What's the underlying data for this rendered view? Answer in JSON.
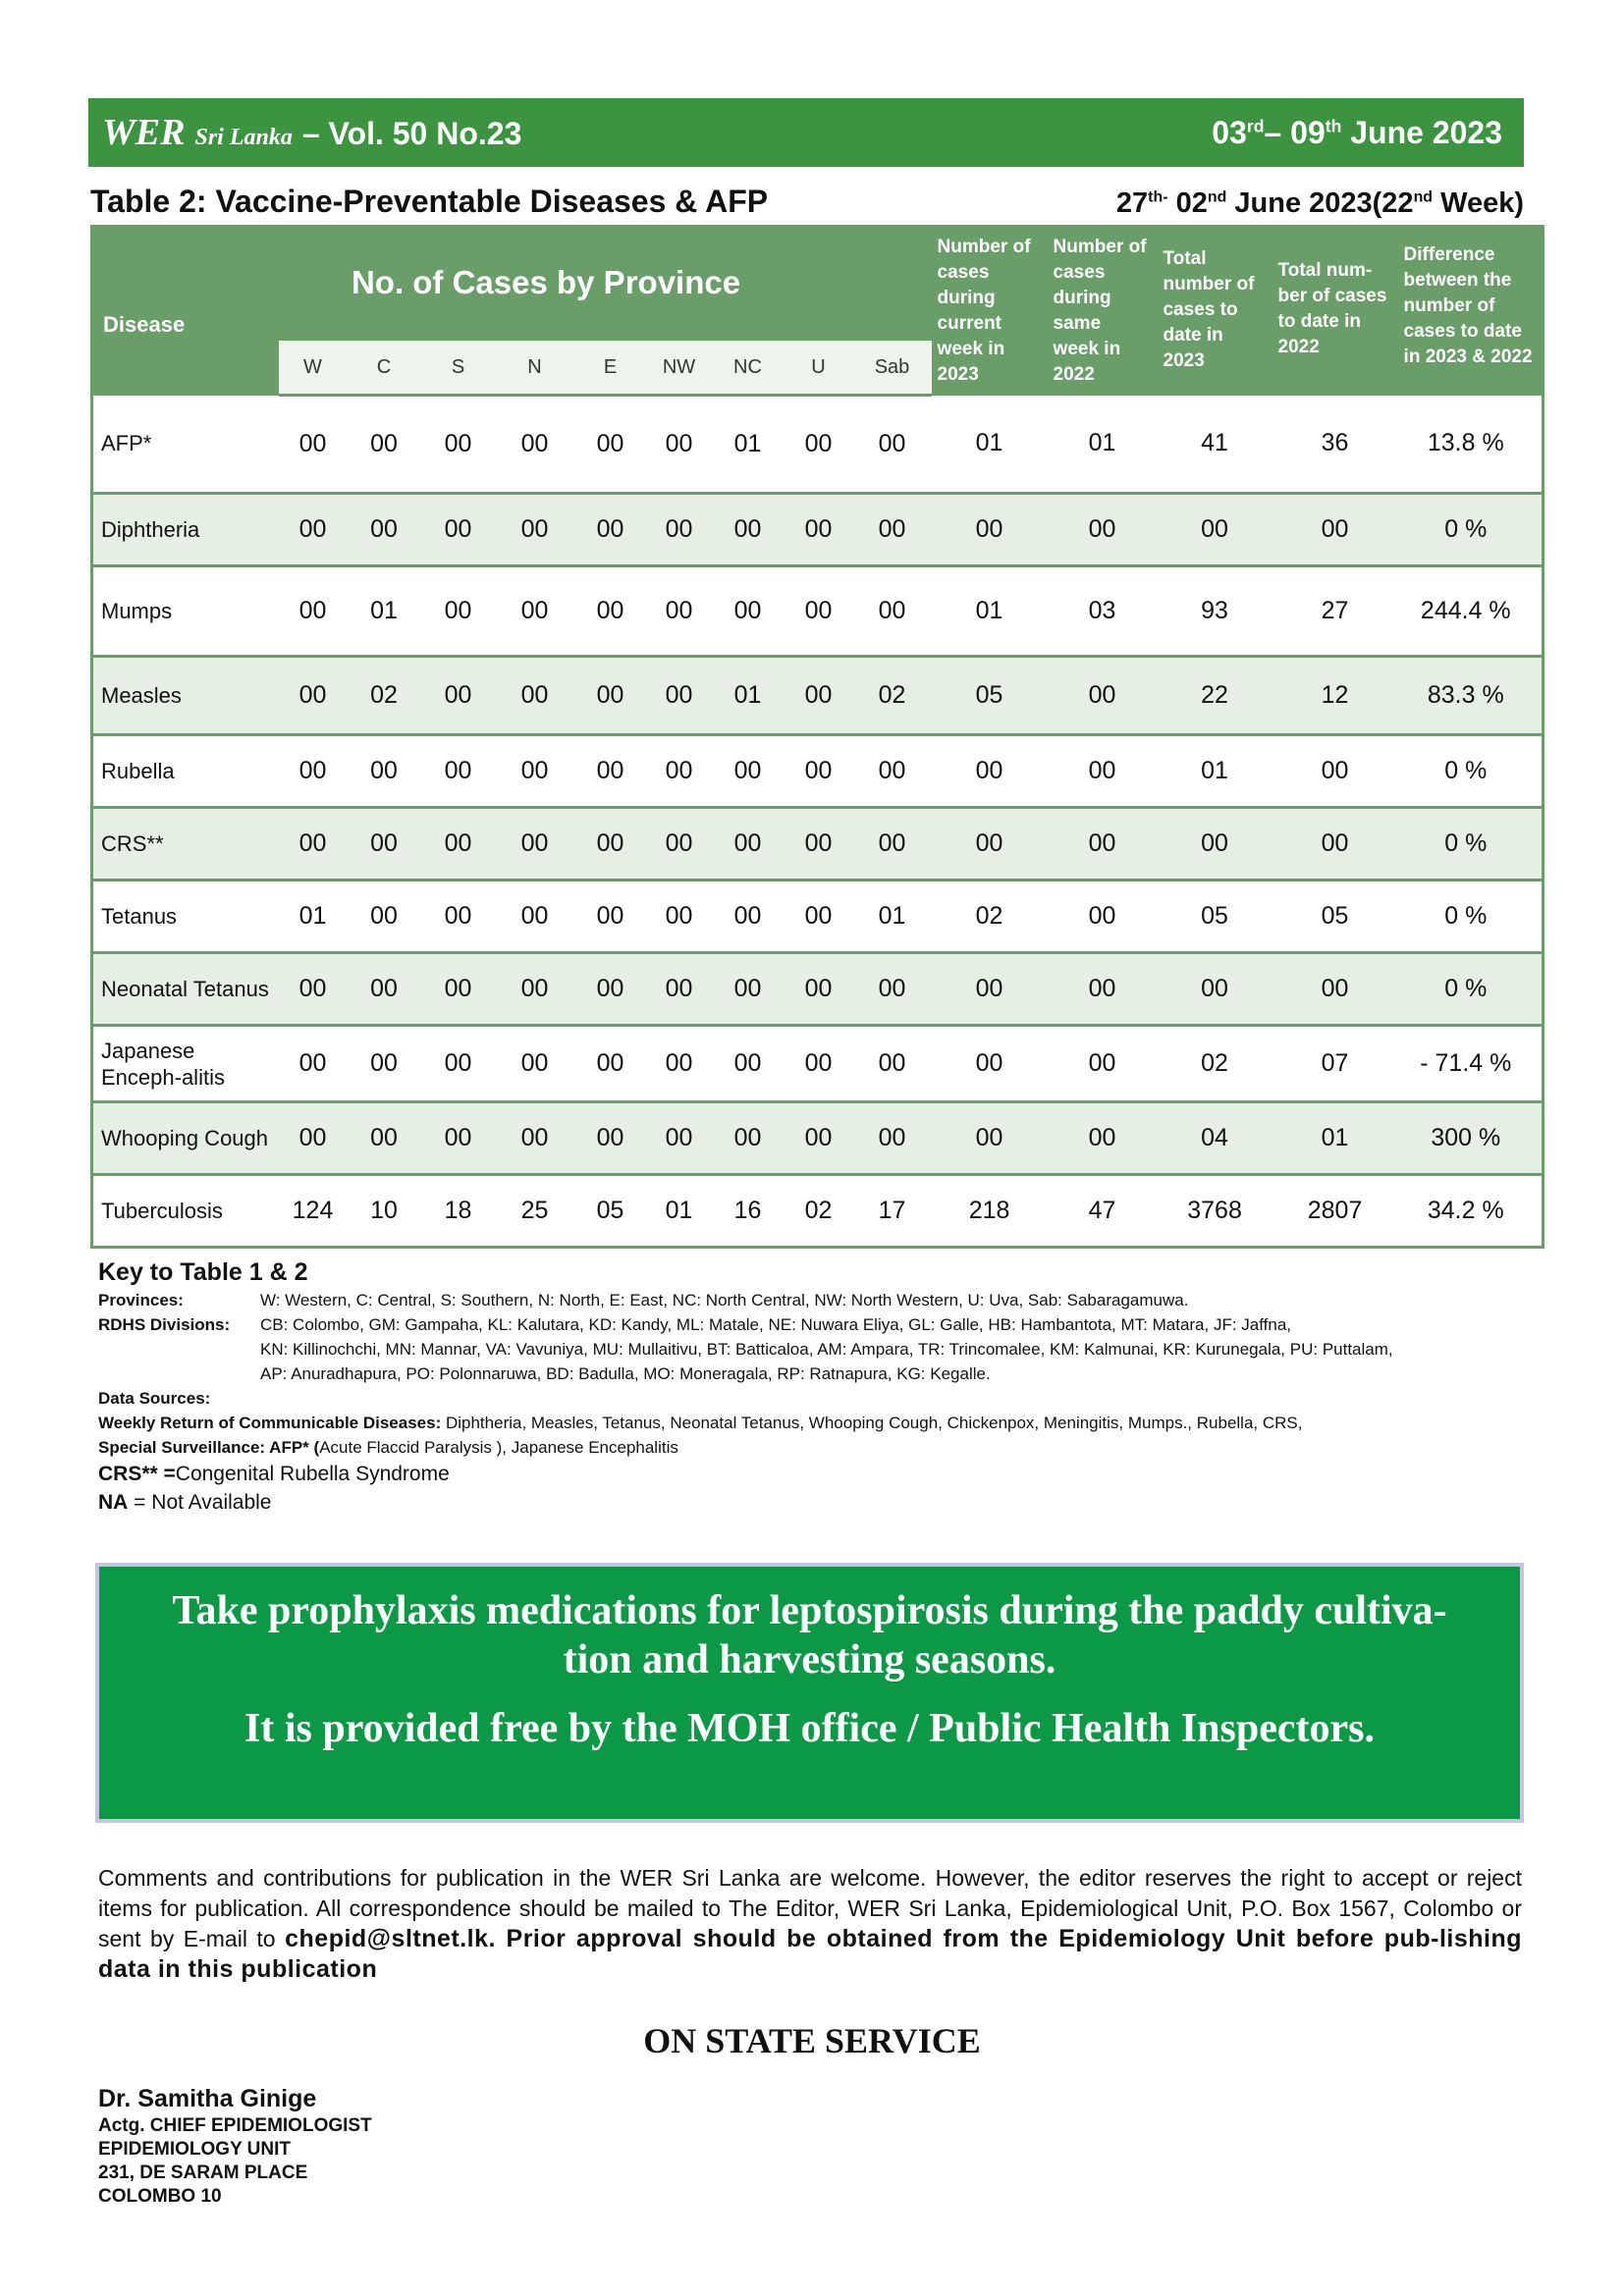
{
  "header": {
    "wer": "WER",
    "sri_lanka": "Sri Lanka",
    "volume": "– Vol. 50 No.23",
    "date_a": "03",
    "date_a_sup": "rd",
    "date_b": "– 09",
    "date_b_sup": "th",
    "date_c": " June 2023"
  },
  "table_title": {
    "title": "Table 2: Vaccine-Preventable Diseases & AFP",
    "week_a": "27",
    "week_a_sup": "th-",
    "week_b": " 02",
    "week_b_sup": "nd",
    "week_c": " June 2023(22",
    "week_c_sup": "nd",
    "week_d": " Week)"
  },
  "columns": {
    "disease": "Disease",
    "province_title": "No. of Cases by Province",
    "provinces": [
      "W",
      "C",
      "S",
      "N",
      "E",
      "NW",
      "NC",
      "U",
      "Sab"
    ],
    "current_week": "Number of cases during current week in 2023",
    "same_week": "Number of cases during same week in 2022",
    "total_2023": "Total number of cases to date in 2023",
    "total_2022": "Total num-ber of cases to date in 2022",
    "difference": "Difference between the number of cases to date in 2023 & 2022"
  },
  "rows": [
    {
      "name": "AFP*",
      "values": [
        "00",
        "00",
        "00",
        "00",
        "00",
        "00",
        "01",
        "00",
        "00",
        "01",
        "01",
        "41",
        "36",
        "13.8 %"
      ]
    },
    {
      "name": "Diphtheria",
      "values": [
        "00",
        "00",
        "00",
        "00",
        "00",
        "00",
        "00",
        "00",
        "00",
        "00",
        "00",
        "00",
        "00",
        "0 %"
      ]
    },
    {
      "name": "Mumps",
      "values": [
        "00",
        "01",
        "00",
        "00",
        "00",
        "00",
        "00",
        "00",
        "00",
        "01",
        "03",
        "93",
        "27",
        "244.4 %"
      ]
    },
    {
      "name": "Measles",
      "values": [
        "00",
        "02",
        "00",
        "00",
        "00",
        "00",
        "01",
        "00",
        "02",
        "05",
        "00",
        "22",
        "12",
        "83.3 %"
      ]
    },
    {
      "name": "Rubella",
      "values": [
        "00",
        "00",
        "00",
        "00",
        "00",
        "00",
        "00",
        "00",
        "00",
        "00",
        "00",
        "01",
        "00",
        "0 %"
      ]
    },
    {
      "name": "CRS**",
      "values": [
        "00",
        "00",
        "00",
        "00",
        "00",
        "00",
        "00",
        "00",
        "00",
        "00",
        "00",
        "00",
        "00",
        "0 %"
      ]
    },
    {
      "name": "Tetanus",
      "values": [
        "01",
        "00",
        "00",
        "00",
        "00",
        "00",
        "00",
        "00",
        "01",
        "02",
        "00",
        "05",
        "05",
        "0 %"
      ]
    },
    {
      "name": "Neonatal Tetanus",
      "values": [
        "00",
        "00",
        "00",
        "00",
        "00",
        "00",
        "00",
        "00",
        "00",
        "00",
        "00",
        "00",
        "00",
        "0 %"
      ]
    },
    {
      "name": "Japanese Enceph-alitis",
      "values": [
        "00",
        "00",
        "00",
        "00",
        "00",
        "00",
        "00",
        "00",
        "00",
        "00",
        "00",
        "02",
        "07",
        "- 71.4 %"
      ]
    },
    {
      "name": "Whooping Cough",
      "values": [
        "00",
        "00",
        "00",
        "00",
        "00",
        "00",
        "00",
        "00",
        "00",
        "00",
        "00",
        "04",
        "01",
        "300 %"
      ]
    },
    {
      "name": "Tuberculosis",
      "values": [
        "124",
        "10",
        "18",
        "25",
        "05",
        "01",
        "16",
        "02",
        "17",
        "218",
        "47",
        "3768",
        "2807",
        "34.2 %"
      ]
    }
  ],
  "key": {
    "title": "Key to Table 1 & 2",
    "provinces_label": "Provinces:",
    "provinces_text": "W: Western, C: Central, S: Southern, N: North, E: East, NC: North Central, NW: North Western, U: Uva, Sab: Sabaragamuwa.",
    "rdhs_label": "RDHS Divisions:",
    "rdhs_line1": "CB: Colombo, GM: Gampaha, KL: Kalutara, KD: Kandy, ML: Matale, NE: Nuwara Eliya, GL: Galle, HB: Hambantota, MT: Matara, JF: Jaffna,",
    "rdhs_line2": "KN: Killinochchi, MN: Mannar, VA: Vavuniya, MU: Mullaitivu, BT: Batticaloa, AM: Ampara, TR: Trincomalee, KM: Kalmunai, KR: Kurunegala, PU: Puttalam,",
    "rdhs_line3": "AP: Anuradhapura, PO: Polonnaruwa, BD: Badulla, MO: Moneragala, RP: Ratnapura, KG: Kegalle.",
    "sources_label": "Data Sources:",
    "weekly_label": "Weekly Return of Communicable Diseases:",
    "weekly_text": " Diphtheria, Measles, Tetanus, Neonatal Tetanus, Whooping Cough, Chickenpox, Meningitis, Mumps., Rubella, CRS,",
    "special_label": "Special Surveillance: AFP* (",
    "special_text": "Acute Flaccid Paralysis ), Japanese Encephalitis",
    "crs_label": "CRS** =",
    "crs_text": "Congenital Rubella Syndrome",
    "na_label": "NA",
    "na_text": " = Not Available"
  },
  "promo": {
    "line1": "Take prophylaxis medications for leptospirosis during the paddy cultiva-tion and harvesting seasons.",
    "line2": "It is provided free by the MOH office / Public Health Inspectors."
  },
  "comments": {
    "text": "Comments and contributions for publication in the WER Sri Lanka are welcome. However, the editor reserves the right to accept or reject items for publication. All correspondence should be mailed to The Editor, WER Sri Lanka, Epidemiological Unit, P.O. Box 1567, Colombo or sent by E-mail to ",
    "bold": "chepid@sltnet.lk. Prior approval should be obtained from the Epidemiology Unit before pub-lishing data in this publication"
  },
  "state": "ON STATE SERVICE",
  "signature": {
    "name": "Dr. Samitha Ginige",
    "line1": "Actg. CHIEF EPIDEMIOLOGIST",
    "line2": "EPIDEMIOLOGY UNIT",
    "line3": "231, DE SARAM PLACE",
    "line4": "COLOMBO 10"
  }
}
